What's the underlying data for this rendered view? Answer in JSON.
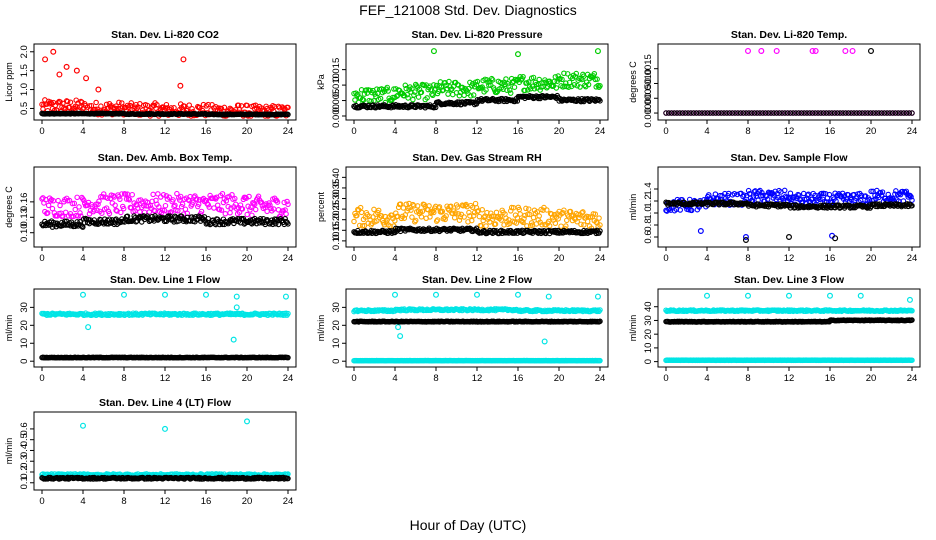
{
  "figure": {
    "title": "FEF_121008  Std. Dev. Diagnostics",
    "xlabel": "Hour of Day (UTC)"
  },
  "chart_data": [
    {
      "type": "scatter",
      "title": "Stan. Dev. Li-820 CO2",
      "ylabel": "Licor ppm",
      "xlim": [
        0,
        24
      ],
      "ylim": [
        0.3,
        2.1
      ],
      "yticks": [
        0.5,
        1.0,
        1.5,
        2.0
      ],
      "ytick_labels": [
        "0.5",
        "1.0",
        "1.5",
        "2.0"
      ],
      "xticks": [
        0,
        4,
        8,
        12,
        16,
        20,
        24
      ],
      "series": [
        {
          "color": "#ff0000",
          "base_values": [
            0.5,
            0.45,
            0.42,
            0.4,
            0.38,
            0.36
          ],
          "spread": 0.35,
          "outliers": [
            [
              1.1,
              2.0
            ],
            [
              0.3,
              1.8
            ],
            [
              2.4,
              1.6
            ],
            [
              3.4,
              1.5
            ],
            [
              4.3,
              1.3
            ],
            [
              1.7,
              1.4
            ],
            [
              13.8,
              1.8
            ],
            [
              5.5,
              1.0
            ],
            [
              13.5,
              1.1
            ]
          ]
        },
        {
          "color": "#000000",
          "base_values": [
            0.36,
            0.36,
            0.35,
            0.35,
            0.34,
            0.34
          ],
          "spread": 0.02,
          "outliers": []
        }
      ]
    },
    {
      "type": "scatter",
      "title": "Stan. Dev. Li-820 Pressure",
      "ylabel": "kPa",
      "xlim": [
        0,
        24
      ],
      "ylim": [
        0.0,
        0.022
      ],
      "yticks": [
        0.0,
        0.005,
        0.01,
        0.015
      ],
      "ytick_labels": [
        "0.000",
        "0.005",
        "0.010",
        "0.015"
      ],
      "xticks": [
        0,
        4,
        8,
        12,
        16,
        20,
        24
      ],
      "series": [
        {
          "color": "#00cc00",
          "base_values": [
            0.006,
            0.007,
            0.008,
            0.009,
            0.01,
            0.011
          ],
          "spread": 0.005,
          "outliers": [
            [
              7.8,
              0.021
            ],
            [
              16,
              0.02
            ],
            [
              23.8,
              0.021
            ]
          ]
        },
        {
          "color": "#000000",
          "base_values": [
            0.003,
            0.003,
            0.004,
            0.005,
            0.006,
            0.005
          ],
          "spread": 0.001,
          "outliers": []
        }
      ]
    },
    {
      "type": "scatter",
      "title": "Stan. Dev. Li-820 Temp.",
      "ylabel": "degrees C",
      "xlim": [
        0,
        24
      ],
      "ylim": [
        -0.0001,
        0.0022
      ],
      "yticks": [
        0.0,
        0.0005,
        0.001,
        0.0015
      ],
      "ytick_labels": [
        "0.0000",
        "0.0005",
        "0.0010",
        "0.0015"
      ],
      "xticks": [
        0,
        4,
        8,
        12,
        16,
        20,
        24
      ],
      "series": [
        {
          "color": "#ff00ff",
          "base_values": [
            0,
            0,
            0,
            0,
            0,
            0
          ],
          "spread": 0,
          "outliers": [
            [
              8,
              0.0021
            ],
            [
              9.3,
              0.0021
            ],
            [
              10.8,
              0.0021
            ],
            [
              14.3,
              0.0021
            ],
            [
              14.6,
              0.0021
            ],
            [
              17.5,
              0.0021
            ],
            [
              18.2,
              0.0021
            ]
          ]
        },
        {
          "color": "#000000",
          "base_values": [
            0,
            0,
            0,
            0,
            0,
            0
          ],
          "spread": 0,
          "outliers": [
            [
              20,
              0.0021
            ]
          ]
        }
      ]
    },
    {
      "type": "scatter",
      "title": "Stan. Dev. Amb. Box Temp.",
      "ylabel": "degrees C",
      "xlim": [
        0,
        24
      ],
      "ylim": [
        0.08,
        0.22
      ],
      "yticks": [
        0.1,
        0.13,
        0.16
      ],
      "ytick_labels": [
        "0.10",
        "0.13",
        "0.16"
      ],
      "xticks": [
        0,
        4,
        8,
        12,
        16,
        20,
        24
      ],
      "series": [
        {
          "color": "#ff00ff",
          "base_values": [
            0.145,
            0.15,
            0.15,
            0.15,
            0.15,
            0.145
          ],
          "spread": 0.04,
          "outliers": []
        },
        {
          "color": "#000000",
          "base_values": [
            0.115,
            0.12,
            0.125,
            0.125,
            0.12,
            0.12
          ],
          "spread": 0.012,
          "outliers": []
        }
      ]
    },
    {
      "type": "scatter",
      "title": "Stan. Dev. Gas Stream RH",
      "ylabel": "percent",
      "xlim": [
        0,
        24
      ],
      "ylim": [
        0.09,
        0.43
      ],
      "yticks": [
        0.1,
        0.15,
        0.2,
        0.25,
        0.3,
        0.35,
        0.4
      ],
      "ytick_labels": [
        "0.10",
        "0.15",
        "0.20",
        "0.25",
        "0.30",
        "0.35",
        "0.40"
      ],
      "xticks": [
        0,
        4,
        8,
        12,
        16,
        20,
        24
      ],
      "series": [
        {
          "color": "#ffa500",
          "base_values": [
            0.2,
            0.22,
            0.22,
            0.2,
            0.2,
            0.19
          ],
          "spread": 0.09,
          "outliers": []
        },
        {
          "color": "#000000",
          "base_values": [
            0.14,
            0.15,
            0.15,
            0.14,
            0.14,
            0.14
          ],
          "spread": 0.015,
          "outliers": []
        }
      ]
    },
    {
      "type": "scatter",
      "title": "Stan. Dev. Sample Flow",
      "ylabel": "ml/min",
      "xlim": [
        0,
        24
      ],
      "ylim": [
        0.5,
        1.7
      ],
      "yticks": [
        0.6,
        0.8,
        1.0,
        1.2,
        1.4
      ],
      "ytick_labels": [
        "0.6",
        "0.8",
        "1.0",
        "1.2",
        "1.4"
      ],
      "xticks": [
        0,
        4,
        8,
        12,
        16,
        20,
        24
      ],
      "series": [
        {
          "color": "#0000ff",
          "base_values": [
            1.1,
            1.2,
            1.25,
            1.2,
            1.2,
            1.25
          ],
          "spread": 0.2,
          "outliers": [
            [
              3.4,
              0.7
            ],
            [
              7.8,
              0.6
            ],
            [
              16.2,
              0.62
            ]
          ]
        },
        {
          "color": "#000000",
          "base_values": [
            1.15,
            1.15,
            1.12,
            1.1,
            1.1,
            1.12
          ],
          "spread": 0.05,
          "outliers": [
            [
              7.8,
              0.55
            ],
            [
              12,
              0.6
            ],
            [
              16.5,
              0.58
            ]
          ]
        }
      ]
    },
    {
      "type": "scatter",
      "title": "Stan. Dev. Line 1 Flow",
      "ylabel": "ml/min",
      "xlim": [
        0,
        24
      ],
      "ylim": [
        -1,
        38
      ],
      "yticks": [
        0,
        10,
        20,
        30
      ],
      "ytick_labels": [
        "0",
        "10",
        "20",
        "30"
      ],
      "xticks": [
        0,
        4,
        8,
        12,
        16,
        20,
        24
      ],
      "series": [
        {
          "color": "#00e5e5",
          "base_values": [
            26,
            26,
            26,
            26,
            26,
            26
          ],
          "spread": 1.2,
          "outliers": [
            [
              4,
              37
            ],
            [
              8,
              37
            ],
            [
              12,
              37
            ],
            [
              16,
              37
            ],
            [
              19,
              36
            ],
            [
              23.8,
              36
            ],
            [
              4.5,
              19
            ],
            [
              18.7,
              12
            ],
            [
              19,
              30
            ]
          ]
        },
        {
          "color": "#000000",
          "base_values": [
            2,
            2,
            2,
            2,
            2,
            2
          ],
          "spread": 0.3,
          "outliers": []
        }
      ]
    },
    {
      "type": "scatter",
      "title": "Stan. Dev. Line 2 Flow",
      "ylabel": "ml/min",
      "xlim": [
        0,
        24
      ],
      "ylim": [
        -1,
        38
      ],
      "yticks": [
        0,
        10,
        20,
        30
      ],
      "ytick_labels": [
        "0",
        "10",
        "20",
        "30"
      ],
      "xticks": [
        0,
        4,
        8,
        12,
        16,
        20,
        24
      ],
      "series": [
        {
          "color": "#00e5e5",
          "base_values": [
            28,
            28.5,
            28.5,
            28.5,
            28,
            28
          ],
          "spread": 1,
          "outliers": [
            [
              4,
              37
            ],
            [
              8,
              37
            ],
            [
              12,
              37
            ],
            [
              16,
              37
            ],
            [
              19,
              36
            ],
            [
              23.8,
              36
            ],
            [
              4.5,
              14
            ],
            [
              18.6,
              11
            ],
            [
              4.3,
              19
            ]
          ]
        },
        {
          "color": "#000000",
          "base_values": [
            22,
            22,
            22,
            22,
            22,
            22
          ],
          "spread": 0.4,
          "outliers": []
        },
        {
          "color": "#00e5e5",
          "base_values": [
            0.3,
            0.3,
            0.3,
            0.3,
            0.3,
            0.3
          ],
          "spread": 0.1,
          "outliers": []
        }
      ]
    },
    {
      "type": "scatter",
      "title": "Stan. Dev. Line 3 Flow",
      "ylabel": "ml/min",
      "xlim": [
        0,
        24
      ],
      "ylim": [
        -1,
        50
      ],
      "yticks": [
        0,
        10,
        20,
        30,
        40
      ],
      "ytick_labels": [
        "0",
        "10",
        "20",
        "30",
        "40"
      ],
      "xticks": [
        0,
        4,
        8,
        12,
        16,
        20,
        24
      ],
      "series": [
        {
          "color": "#00e5e5",
          "base_values": [
            37,
            37,
            37,
            37,
            37,
            37
          ],
          "spread": 1,
          "outliers": [
            [
              4,
              48
            ],
            [
              8,
              48
            ],
            [
              12,
              48
            ],
            [
              16,
              48
            ],
            [
              19,
              48
            ],
            [
              23.8,
              45
            ]
          ]
        },
        {
          "color": "#000000",
          "base_values": [
            29,
            29,
            29,
            29,
            30,
            30
          ],
          "spread": 0.5,
          "outliers": []
        },
        {
          "color": "#00e5e5",
          "base_values": [
            1,
            1,
            1,
            1,
            1,
            1
          ],
          "spread": 0.2,
          "outliers": []
        }
      ]
    },
    {
      "type": "scatter",
      "title": "Stan. Dev. Line 4 (LT) Flow",
      "ylabel": "ml/min",
      "xlim": [
        0,
        24
      ],
      "ylim": [
        0.07,
        0.72
      ],
      "yticks": [
        0.1,
        0.2,
        0.3,
        0.4,
        0.5,
        0.6
      ],
      "ytick_labels": [
        "0.1",
        "0.2",
        "0.3",
        "0.4",
        "0.5",
        "0.6"
      ],
      "xticks": [
        0,
        4,
        8,
        12,
        16,
        20,
        24
      ],
      "series": [
        {
          "color": "#00e5e5",
          "base_values": [
            0.17,
            0.17,
            0.17,
            0.17,
            0.17,
            0.17
          ],
          "spread": 0.02,
          "outliers": [
            [
              4,
              0.63
            ],
            [
              12,
              0.6
            ],
            [
              20,
              0.67
            ]
          ]
        },
        {
          "color": "#000000",
          "base_values": [
            0.14,
            0.14,
            0.14,
            0.14,
            0.14,
            0.14
          ],
          "spread": 0.015,
          "outliers": []
        }
      ]
    }
  ]
}
